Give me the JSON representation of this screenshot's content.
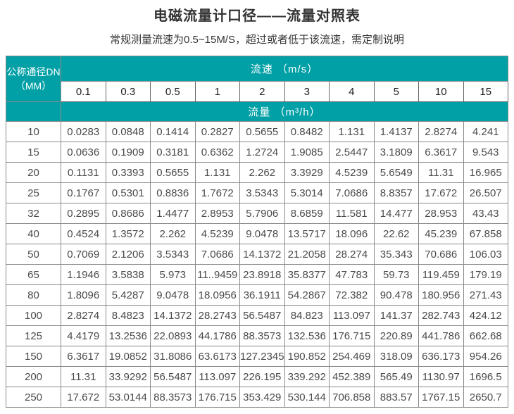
{
  "page": {
    "title": "电磁流量计口径——流量对照表",
    "subtitle": "常规测量流速为0.5~15M/S，超过或者低于该流速，需定制说明"
  },
  "colors": {
    "header_teal": "#00a0a6",
    "header_divider_red": "#8b4438",
    "cell_border_gray": "#8a8a8a",
    "data_text": "#4a4a4a"
  },
  "table": {
    "corner_header_line1": "公称通径DN",
    "corner_header_line2": "（MM）",
    "velocity_header": "流速 （m/s）",
    "flow_header": "流量 （m³/h）",
    "velocities": [
      "0.1",
      "0.3",
      "0.5",
      "1",
      "2",
      "3",
      "4",
      "5",
      "10",
      "15"
    ],
    "rows": [
      {
        "dn": "10",
        "values": [
          "0.0283",
          "0.0848",
          "0.1414",
          "0.2827",
          "0.5655",
          "0.8482",
          "1.131",
          "1.4137",
          "2.8274",
          "4.241"
        ]
      },
      {
        "dn": "15",
        "values": [
          "0.0636",
          "0.1909",
          "0.3181",
          "0.6362",
          "1.2724",
          "1.9085",
          "2.5447",
          "3.1809",
          "6.3617",
          "9.543"
        ]
      },
      {
        "dn": "20",
        "values": [
          "0.1131",
          "0.3393",
          "0.5655",
          "1.131",
          "2.262",
          "3.3929",
          "4.5239",
          "5.6549",
          "11.31",
          "16.965"
        ]
      },
      {
        "dn": "25",
        "values": [
          "0.1767",
          "0.5301",
          "0.8836",
          "1.7672",
          "3.5343",
          "5.3014",
          "7.0686",
          "8.8357",
          "17.672",
          "26.507"
        ]
      },
      {
        "dn": "32",
        "values": [
          "0.2895",
          "0.8686",
          "1.4477",
          "2.8953",
          "5.7906",
          "8.6859",
          "11.581",
          "14.477",
          "28.953",
          "43.43"
        ]
      },
      {
        "dn": "40",
        "values": [
          "0.4524",
          "1.3572",
          "2.262",
          "4.5239",
          "9.0478",
          "13.5717",
          "18.096",
          "22.62",
          "45.239",
          "67.858"
        ]
      },
      {
        "dn": "50",
        "values": [
          "0.7069",
          "2.1206",
          "3.5343",
          "7.0686",
          "14.1372",
          "21.2058",
          "28.274",
          "35.343",
          "70.686",
          "106.03"
        ]
      },
      {
        "dn": "65",
        "values": [
          "1.1946",
          "3.5838",
          "5.973",
          "11..9459",
          "23.8918",
          "35.8377",
          "47.783",
          "59.73",
          "119.459",
          "179.19"
        ]
      },
      {
        "dn": "80",
        "values": [
          "1.8096",
          "5.4287",
          "9.0478",
          "18.0956",
          "36.1911",
          "54.2867",
          "72.382",
          "90.478",
          "180.956",
          "271.43"
        ]
      },
      {
        "dn": "100",
        "values": [
          "2.8274",
          "8.4823",
          "14.1372",
          "28.2743",
          "56.5487",
          "84.823",
          "113.097",
          "141.37",
          "282.743",
          "424.12"
        ]
      },
      {
        "dn": "125",
        "values": [
          "4.4179",
          "13.2536",
          "22.0893",
          "44.1786",
          "88.3573",
          "132.536",
          "176.715",
          "220.89",
          "441.786",
          "662.68"
        ]
      },
      {
        "dn": "150",
        "values": [
          "6.3617",
          "19.0852",
          "31.8086",
          "63.6173",
          "127.2345",
          "190.852",
          "254.469",
          "318.09",
          "636.173",
          "954.26"
        ]
      },
      {
        "dn": "200",
        "values": [
          "11.31",
          "33.9292",
          "56.5487",
          "113.097",
          "226.195",
          "339.292",
          "452.389",
          "565.49",
          "1130.97",
          "1696.5"
        ]
      },
      {
        "dn": "250",
        "values": [
          "17.672",
          "53.0144",
          "88.3573",
          "176.715",
          "353.429",
          "530.144",
          "706.858",
          "883.57",
          "1767.15",
          "2650.7"
        ]
      }
    ]
  }
}
